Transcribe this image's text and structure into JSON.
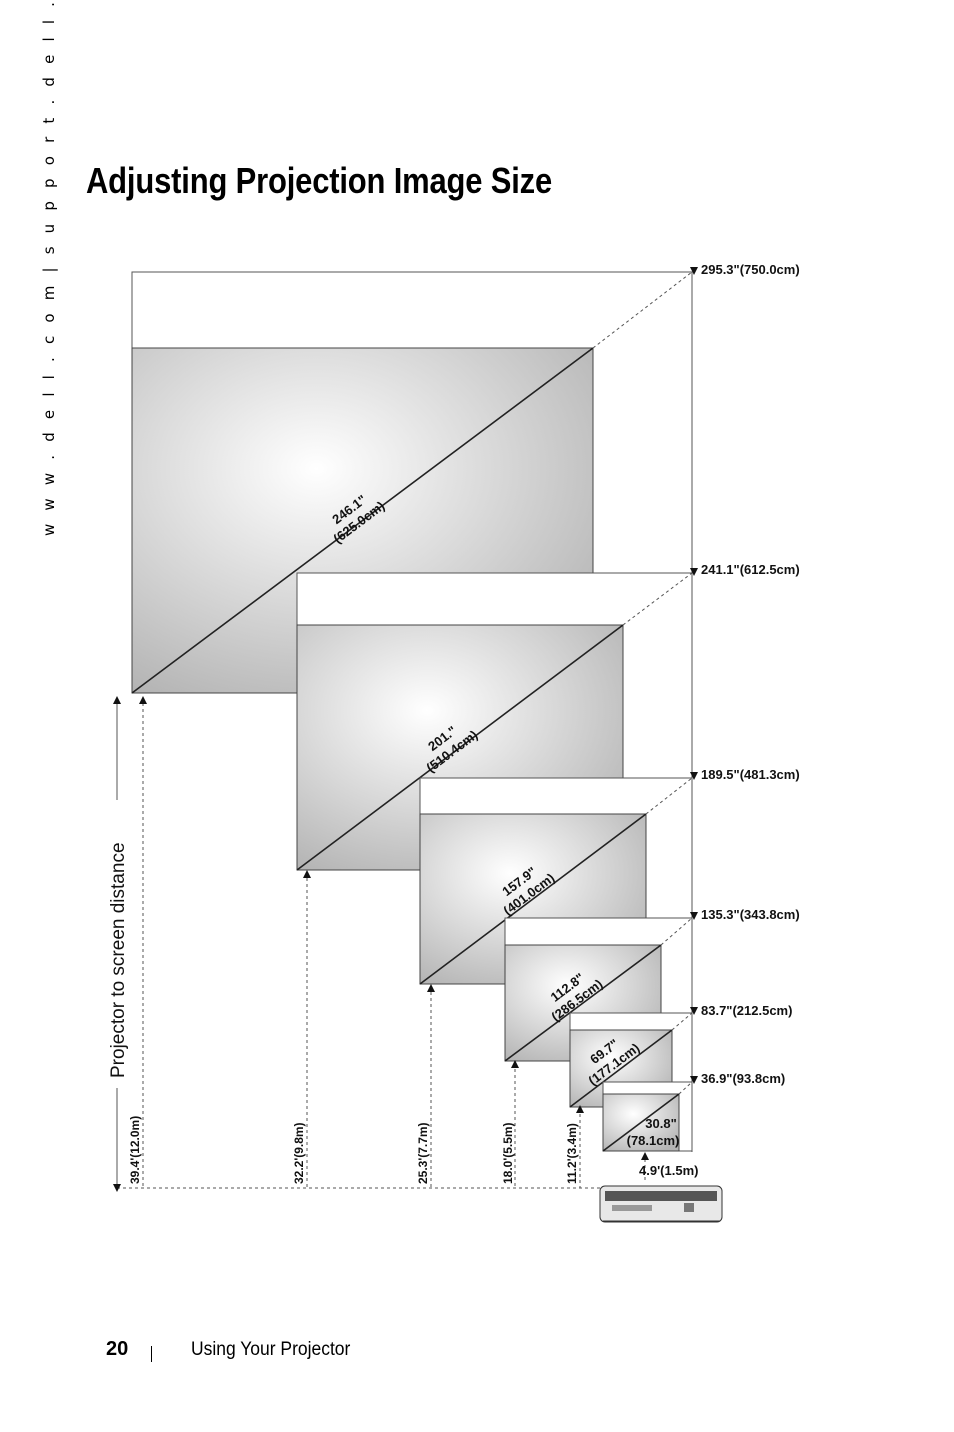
{
  "side_text": "w w w . d e l l . c o m   |   s u p p o r t . d e l l . c o m",
  "title": "Adjusting Projection Image Size",
  "diagram": {
    "vertical_label": "Projector to screen distance",
    "diagonals": [
      {
        "inch": "246.1\"",
        "cm": "(625.0cm)"
      },
      {
        "inch": "201.\"",
        "cm": "(510.4cm)"
      },
      {
        "inch": "157.9\"",
        "cm": "(401.0cm)"
      },
      {
        "inch": "112.8\"",
        "cm": "(286.5cm)"
      },
      {
        "inch": "69.7\"",
        "cm": "(177.1cm)"
      },
      {
        "inch": "30.8\"",
        "cm": "(78.1cm)"
      }
    ],
    "heights": [
      "295.3\"(750.0cm)",
      "241.1\"(612.5cm)",
      "189.5\"(481.3cm)",
      "135.3\"(343.8cm)",
      "83.7\"(212.5cm)",
      "36.9\"(93.8cm)"
    ],
    "distances": [
      "39.4'(12.0m)",
      "32.2'(9.8m)",
      "25.3'(7.7m)",
      "18.0'(5.5m)",
      "11.2'(3.4m)",
      "4.9'(1.5m)"
    ]
  },
  "footer": {
    "page_number": "20",
    "section": "Using Your Projector"
  }
}
